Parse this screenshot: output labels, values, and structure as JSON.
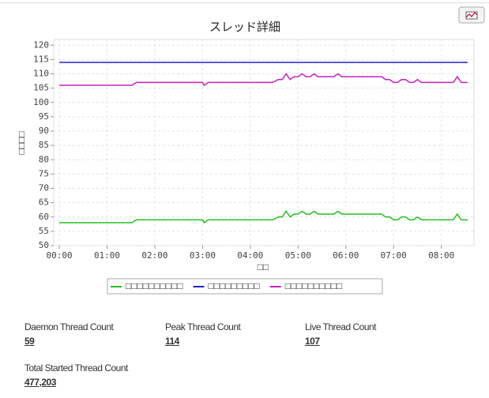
{
  "chart_data": {
    "type": "line",
    "title": "スレッド詳細",
    "x_label": "□□",
    "y_label": "□□□□",
    "x": [
      0,
      91,
      97,
      180,
      182,
      187,
      268,
      275,
      280,
      285,
      290,
      295,
      300,
      305,
      310,
      315,
      320,
      325,
      345,
      350,
      355,
      405,
      410,
      415,
      420,
      425,
      430,
      435,
      440,
      445,
      450,
      455,
      495,
      500,
      505,
      513
    ],
    "xlim": [
      -7,
      521
    ],
    "xticks": [
      {
        "value": 0,
        "label": "00:00"
      },
      {
        "value": 60,
        "label": "01:00"
      },
      {
        "value": 120,
        "label": "02:00"
      },
      {
        "value": 180,
        "label": "03:00"
      },
      {
        "value": 240,
        "label": "04:00"
      },
      {
        "value": 300,
        "label": "05:00"
      },
      {
        "value": 360,
        "label": "06:00"
      },
      {
        "value": 420,
        "label": "07:00"
      },
      {
        "value": 480,
        "label": "08:00"
      }
    ],
    "ylim": [
      50,
      122
    ],
    "yticks": [
      50,
      55,
      60,
      65,
      70,
      75,
      80,
      85,
      90,
      95,
      100,
      105,
      110,
      115,
      120
    ],
    "grid": true,
    "series": [
      {
        "name": "□□□□□□□□□□",
        "color": "#22c022",
        "values": [
          58,
          58,
          59,
          59,
          58,
          59,
          59,
          60,
          60,
          62,
          60,
          61,
          61,
          62,
          61,
          61,
          62,
          61,
          61,
          62,
          61,
          61,
          60,
          60,
          59,
          59,
          60,
          60,
          59,
          59,
          60,
          59,
          59,
          61,
          59,
          59
        ]
      },
      {
        "name": "□□□□□□□□□",
        "color": "#2222cc",
        "values": [
          114,
          114,
          114,
          114,
          114,
          114,
          114,
          114,
          114,
          114,
          114,
          114,
          114,
          114,
          114,
          114,
          114,
          114,
          114,
          114,
          114,
          114,
          114,
          114,
          114,
          114,
          114,
          114,
          114,
          114,
          114,
          114,
          114,
          114,
          114,
          114
        ]
      },
      {
        "name": "□□□□□□□□□□",
        "color": "#c022c0",
        "values": [
          106,
          106,
          107,
          107,
          106,
          107,
          107,
          108,
          108,
          110,
          108,
          109,
          109,
          110,
          109,
          109,
          110,
          109,
          109,
          110,
          109,
          109,
          108,
          108,
          107,
          107,
          108,
          108,
          107,
          107,
          108,
          107,
          107,
          109,
          107,
          107
        ]
      }
    ]
  },
  "stats": [
    {
      "label": "Daemon Thread Count",
      "value": "59"
    },
    {
      "label": "Peak Thread Count",
      "value": "114"
    },
    {
      "label": "Live Thread Count",
      "value": "107"
    },
    {
      "label": "Total Started Thread Count",
      "value": "477,203"
    }
  ]
}
